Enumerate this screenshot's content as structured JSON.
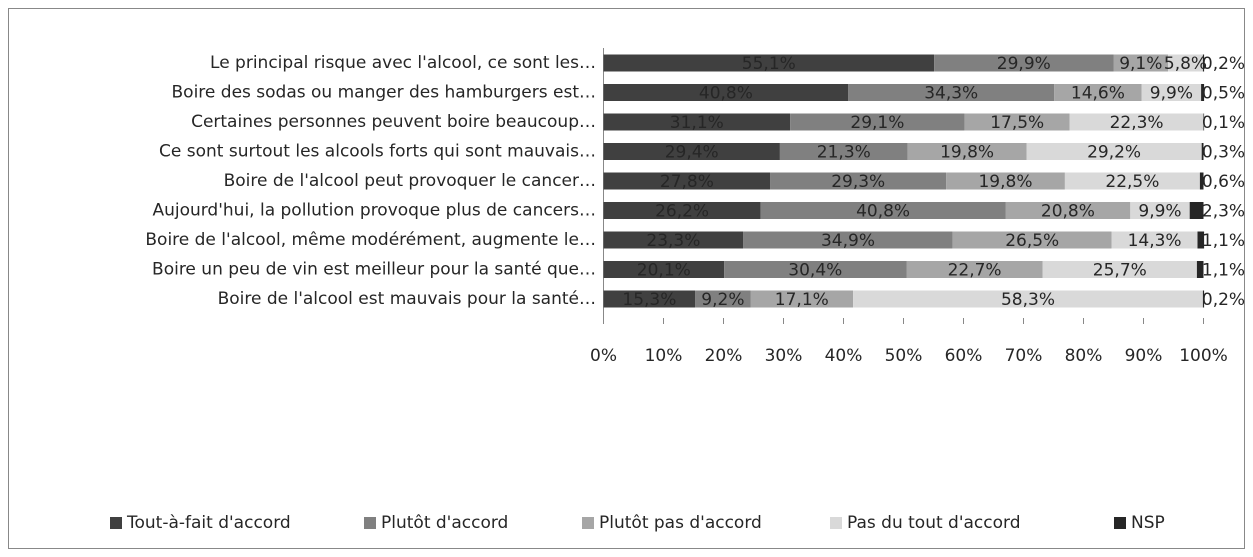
{
  "chart_data": {
    "type": "stacked-bar-horizontal",
    "categories": [
      "Le principal risque avec l'alcool, ce sont les…",
      "Boire des sodas ou manger des hamburgers est…",
      "Certaines personnes peuvent boire beaucoup…",
      "Ce sont surtout les alcools forts qui sont mauvais…",
      "Boire de l'alcool peut provoquer le cancer…",
      "Aujourd'hui, la pollution provoque plus de cancers…",
      "Boire de l'alcool, même modérément, augmente le…",
      "Boire un peu de vin est meilleur pour la santé que…",
      "Boire de l'alcool est mauvais pour la santé…"
    ],
    "series": [
      {
        "name": "Tout-à-fait d'accord",
        "color": "#404040",
        "label_color": "#e6e6e6",
        "values": [
          55.1,
          40.8,
          31.1,
          29.4,
          27.8,
          26.2,
          23.3,
          20.1,
          15.3
        ],
        "value_labels": [
          "55,1%",
          "40,8%",
          "31,1%",
          "29,4%",
          "27,8%",
          "26,2%",
          "23,3%",
          "20,1%",
          "15,3%"
        ]
      },
      {
        "name": "Plutôt d'accord",
        "color": "#808080",
        "label_color": "#262626",
        "values": [
          29.9,
          34.3,
          29.1,
          21.3,
          29.3,
          40.8,
          34.9,
          30.4,
          9.2
        ],
        "value_labels": [
          "29,9%",
          "34,3%",
          "29,1%",
          "21,3%",
          "29,3%",
          "40,8%",
          "34,9%",
          "30,4%",
          "9,2%"
        ]
      },
      {
        "name": "Plutôt pas d'accord",
        "color": "#a6a6a6",
        "label_color": "#262626",
        "values": [
          9.1,
          14.6,
          17.5,
          19.8,
          19.8,
          20.8,
          26.5,
          22.7,
          17.1
        ],
        "value_labels": [
          "9,1%",
          "14,6%",
          "17,5%",
          "19,8%",
          "19,8%",
          "20,8%",
          "26,5%",
          "22,7%",
          "17,1%"
        ]
      },
      {
        "name": "Pas du tout d'accord",
        "color": "#d9d9d9",
        "label_color": "#262626",
        "values": [
          5.8,
          9.9,
          22.3,
          29.2,
          22.5,
          9.9,
          14.3,
          25.7,
          58.3
        ],
        "value_labels": [
          "5,8%",
          "9,9%",
          "22,3%",
          "29,2%",
          "22,5%",
          "9,9%",
          "14,3%",
          "25,7%",
          "58,3%"
        ]
      },
      {
        "name": "NSP",
        "color": "#262626",
        "label_color": "#262626",
        "values": [
          0.2,
          0.5,
          0.1,
          0.3,
          0.6,
          2.3,
          1.1,
          1.1,
          0.2
        ],
        "value_labels": [
          "0,2%",
          "0,5%",
          "0,1%",
          "0,3%",
          "0,6%",
          "2,3%",
          "1,1%",
          "1,1%",
          "0,2%"
        ]
      }
    ],
    "xlim": [
      0,
      100
    ],
    "xticks": [
      {
        "value": 0,
        "label": "0%"
      },
      {
        "value": 10,
        "label": "10%"
      },
      {
        "value": 20,
        "label": "20%"
      },
      {
        "value": 30,
        "label": "30%"
      },
      {
        "value": 40,
        "label": "40%"
      },
      {
        "value": 50,
        "label": "50%"
      },
      {
        "value": 60,
        "label": "60%"
      },
      {
        "value": 70,
        "label": "70%"
      },
      {
        "value": 80,
        "label": "80%"
      },
      {
        "value": 90,
        "label": "90%"
      },
      {
        "value": 100,
        "label": "100%"
      }
    ],
    "legend": "bottom"
  }
}
